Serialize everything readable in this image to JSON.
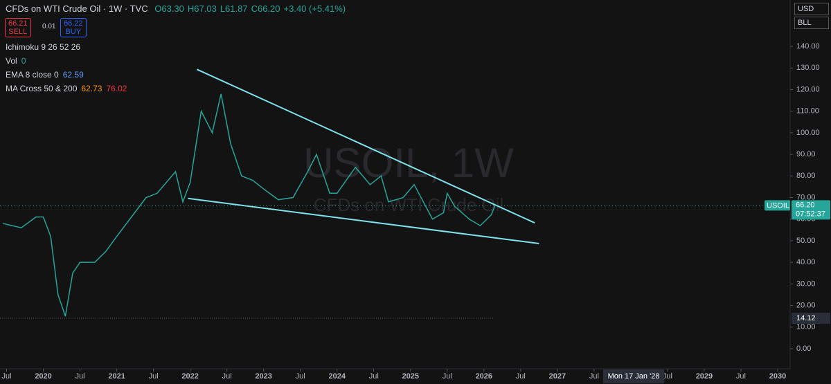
{
  "ui": {
    "title": "CFDs on WTI Crude Oil · 1W · TVC",
    "ohlc": [
      "O63.30",
      "H67.03",
      "L61.87",
      "C66.20",
      "+3.40 (+5.41%)"
    ],
    "sell_price": "66.21",
    "sell": "SELL",
    "spread": "0.01",
    "buy_price": "66.22",
    "buy": "BUY",
    "indicators": [
      [
        "Ichimoku 9 26 52 26"
      ],
      [
        "Vol",
        "0"
      ],
      [
        "EMA 8 close 0",
        "62.59"
      ],
      [
        "MA Cross 50 & 200",
        "62.73",
        "76.02"
      ]
    ],
    "currency": "USD",
    "unit": "BLL",
    "watermark": "USOIL, 1W",
    "watermark_sub": "CFDs on WTI Crude Oil"
  },
  "chart_data": {
    "type": "line",
    "xlim": [
      2019.41,
      2030.17
    ],
    "ylim": [
      -9.3,
      161.5
    ],
    "xticks": [
      {
        "value": 2019.5,
        "label": "Jul"
      },
      2020,
      {
        "value": 2020.5,
        "label": "Jul"
      },
      2021,
      {
        "value": 2021.5,
        "label": "Jul"
      },
      2022,
      {
        "value": 2022.5,
        "label": "Jul"
      },
      2023,
      {
        "value": 2023.5,
        "label": "Jul"
      },
      2024,
      {
        "value": 2024.5,
        "label": "Jul"
      },
      2025,
      {
        "value": 2025.5,
        "label": "Jul"
      },
      2026,
      {
        "value": 2026.5,
        "label": "Jul"
      },
      2027,
      {
        "value": 2027.5,
        "label": "Jul"
      },
      {
        "value": 2028.5,
        "label": "Jul"
      },
      2029,
      {
        "value": 2029.5,
        "label": "Jul"
      },
      2030
    ],
    "yticks": [
      {
        "value": 0,
        "label": "0.00"
      },
      {
        "value": 10,
        "label": "10.00"
      },
      {
        "value": 20,
        "label": "20.00"
      },
      {
        "value": 30,
        "label": "30.00"
      },
      {
        "value": 40,
        "label": "40.00"
      },
      {
        "value": 50,
        "label": "50.00"
      },
      {
        "value": 60,
        "label": "60.00"
      },
      {
        "value": 70,
        "label": "70.00"
      },
      {
        "value": 80,
        "label": "80.00"
      },
      {
        "value": 90,
        "label": "90.00"
      },
      {
        "value": 100,
        "label": "100.00"
      },
      {
        "value": 110,
        "label": "110.00"
      },
      {
        "value": 120,
        "label": "120.00"
      },
      {
        "value": 130,
        "label": "130.00"
      },
      {
        "value": 140,
        "label": "140.00"
      }
    ],
    "series": [
      {
        "color": "#26a69a",
        "x": [
          2019.45,
          2019.7,
          2019.9,
          2020.0,
          2020.1,
          2020.2,
          2020.3,
          2020.4,
          2020.5,
          2020.7,
          2020.85,
          2021.0,
          2021.2,
          2021.4,
          2021.55,
          2021.8,
          2021.9,
          2022.0,
          2022.15,
          2022.3,
          2022.42,
          2022.55,
          2022.7,
          2022.85,
          2023.0,
          2023.2,
          2023.4,
          2023.6,
          2023.72,
          2023.9,
          2024.0,
          2024.25,
          2024.45,
          2024.6,
          2024.7,
          2024.9,
          2025.05,
          2025.3,
          2025.45,
          2025.5,
          2025.6,
          2025.8,
          2025.95,
          2026.1,
          2026.15
        ],
        "values": [
          58,
          56,
          61,
          61,
          52,
          25,
          15,
          35,
          40,
          40,
          45,
          52,
          61,
          70,
          72,
          82,
          68,
          77,
          110,
          100,
          118,
          95,
          80,
          78,
          74,
          69,
          70,
          82,
          90,
          72,
          72,
          84,
          76,
          80,
          68,
          70,
          76,
          60,
          63,
          72,
          66,
          60,
          57,
          62,
          66.2
        ]
      }
    ],
    "trend_lines": [
      {
        "color": "#7fe3ec",
        "x": [
          2022.09,
          2026.69
        ],
        "values": [
          129.4,
          58.3
        ]
      },
      {
        "color": "#7fe3ec",
        "x": [
          2021.97,
          2026.75
        ],
        "values": [
          69.6,
          48.7
        ]
      }
    ],
    "last_price": {
      "symbol": "USOIL",
      "value": 66.2,
      "label": "66.20",
      "countdown": "07:52:37"
    },
    "crosshair": {
      "value": 14.12,
      "date": "Mon 17 Jan '28"
    }
  }
}
